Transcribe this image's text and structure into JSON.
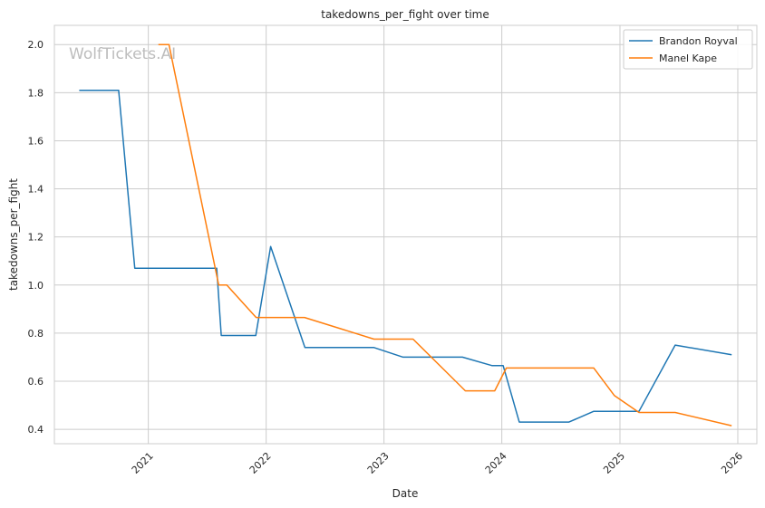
{
  "chart_data": {
    "type": "line",
    "title": "takedowns_per_fight over time",
    "xlabel": "Date",
    "ylabel": "takedowns_per_fight",
    "watermark": "WolfTickets.AI",
    "x_ticks": [
      "2021",
      "2022",
      "2023",
      "2024",
      "2025",
      "2026"
    ],
    "y_ticks": [
      "0.4",
      "0.6",
      "0.8",
      "1.0",
      "1.2",
      "1.4",
      "1.6",
      "1.8",
      "2.0"
    ],
    "xlim": [
      "2020-03-16",
      "2026-03-01"
    ],
    "ylim": [
      0.34,
      2.08
    ],
    "grid": true,
    "legend_position": "top-right",
    "series": [
      {
        "name": "Brandon Royval",
        "color": "#1f77b4",
        "points": [
          [
            "2020-06-01",
            1.81
          ],
          [
            "2020-10-01",
            1.81
          ],
          [
            "2020-11-20",
            1.07
          ],
          [
            "2021-08-01",
            1.07
          ],
          [
            "2021-08-15",
            0.79
          ],
          [
            "2021-11-30",
            0.79
          ],
          [
            "2022-01-15",
            1.16
          ],
          [
            "2022-05-01",
            0.74
          ],
          [
            "2022-12-01",
            0.74
          ],
          [
            "2023-03-01",
            0.7
          ],
          [
            "2023-09-01",
            0.7
          ],
          [
            "2023-12-01",
            0.665
          ],
          [
            "2024-01-05",
            0.665
          ],
          [
            "2024-02-24",
            0.43
          ],
          [
            "2024-07-27",
            0.43
          ],
          [
            "2024-10-12",
            0.475
          ],
          [
            "2025-03-01",
            0.475
          ],
          [
            "2025-06-21",
            0.75
          ],
          [
            "2025-12-13",
            0.71
          ]
        ]
      },
      {
        "name": "Manel Kape",
        "color": "#ff7f0e",
        "points": [
          [
            "2021-02-01",
            2.0
          ],
          [
            "2021-03-06",
            2.0
          ],
          [
            "2021-08-07",
            1.0
          ],
          [
            "2021-09-01",
            1.0
          ],
          [
            "2021-12-01",
            0.865
          ],
          [
            "2022-04-30",
            0.865
          ],
          [
            "2022-12-01",
            0.775
          ],
          [
            "2023-04-01",
            0.775
          ],
          [
            "2023-09-10",
            0.56
          ],
          [
            "2023-12-10",
            0.56
          ],
          [
            "2024-01-15",
            0.655
          ],
          [
            "2024-10-12",
            0.655
          ],
          [
            "2024-12-15",
            0.54
          ],
          [
            "2025-03-01",
            0.47
          ],
          [
            "2025-06-21",
            0.47
          ],
          [
            "2025-12-13",
            0.415
          ]
        ]
      }
    ]
  }
}
